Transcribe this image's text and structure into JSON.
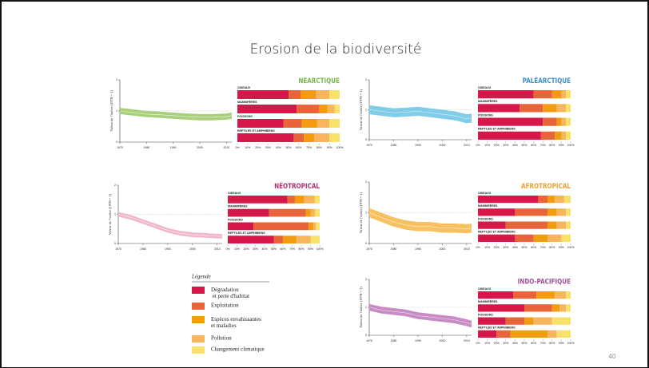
{
  "title": "Erosion de la biodiversité",
  "page_number": "40",
  "legend": {
    "title": "Légende",
    "items": [
      {
        "name": "Dégradation\n et perte d'habitat",
        "color": "#d6174a"
      },
      {
        "name": "Exploitation",
        "color": "#e8643a"
      },
      {
        "name": "Espèces envahissantes\net maladies",
        "color": "#f39c12"
      },
      {
        "name": "Pollution",
        "color": "#f7b55e"
      },
      {
        "name": "Changement climatique",
        "color": "#f8e36a"
      }
    ]
  },
  "chart_data": [
    {
      "type": "band",
      "y_label": "Valeur de l'indice (1970 = 1)",
      "color": "#a8cf7a",
      "x": [
        1970,
        1975,
        1980,
        1985,
        1990,
        1995,
        2000,
        2005,
        2010,
        2012
      ],
      "values": [
        1.0,
        0.95,
        0.9,
        0.88,
        0.85,
        0.82,
        0.8,
        0.8,
        0.82,
        0.85
      ],
      "lower": [
        0.9,
        0.85,
        0.8,
        0.78,
        0.75,
        0.72,
        0.7,
        0.7,
        0.72,
        0.75
      ],
      "upper": [
        1.1,
        1.05,
        1.0,
        0.98,
        0.95,
        0.92,
        0.9,
        0.9,
        0.92,
        0.95
      ],
      "xlim": [
        1970,
        2012
      ],
      "xticks": [
        1970,
        1980,
        1990,
        2000,
        2010
      ],
      "ylim": [
        0,
        2
      ],
      "yticks": [
        0,
        1,
        2
      ]
    },
    {
      "type": "stacked_bar",
      "title": "NÉARCTIQUE",
      "title_color": "#7ab648",
      "categories": [
        "OISEAUX",
        "MAMMIFÈRES",
        "POISSONS",
        "REPTILES ET AMPHIBIENS"
      ],
      "series": [
        {
          "values": [
            50,
            58,
            45,
            55
          ]
        },
        {
          "values": [
            12,
            22,
            18,
            10
          ]
        },
        {
          "values": [
            15,
            8,
            15,
            10
          ]
        },
        {
          "values": [
            13,
            7,
            12,
            15
          ]
        },
        {
          "values": [
            10,
            5,
            10,
            10
          ]
        }
      ],
      "xlim": [
        0,
        100
      ],
      "xticks": [
        {
          "value": 0,
          "label": "0%"
        },
        {
          "value": 10,
          "label": "10%"
        },
        {
          "value": 20,
          "label": "20%"
        },
        {
          "value": 30,
          "label": "30%"
        },
        {
          "value": 40,
          "label": "40%"
        },
        {
          "value": 50,
          "label": "50%"
        },
        {
          "value": 60,
          "label": "60%"
        },
        {
          "value": 70,
          "label": "70%"
        },
        {
          "value": 80,
          "label": "80%"
        },
        {
          "value": 90,
          "label": "90%"
        },
        {
          "value": 100,
          "label": "100%"
        }
      ]
    },
    {
      "type": "band",
      "y_label": "Valeur de l'indice (1970 = 1)",
      "color": "#7fcde6",
      "x": [
        1970,
        1975,
        1980,
        1985,
        1990,
        1995,
        2000,
        2005,
        2010,
        2012
      ],
      "values": [
        1.0,
        0.95,
        0.9,
        0.92,
        0.95,
        0.9,
        0.85,
        0.8,
        0.7,
        0.72
      ],
      "lower": [
        0.85,
        0.8,
        0.75,
        0.77,
        0.8,
        0.75,
        0.7,
        0.65,
        0.55,
        0.57
      ],
      "upper": [
        1.15,
        1.1,
        1.05,
        1.07,
        1.1,
        1.05,
        1.0,
        0.95,
        0.85,
        0.87
      ],
      "xlim": [
        1970,
        2012
      ],
      "xticks": [
        1970,
        1980,
        1990,
        2000,
        2010
      ],
      "ylim": [
        0,
        2
      ],
      "yticks": [
        0,
        1,
        2
      ]
    },
    {
      "type": "stacked_bar",
      "title": "PALÉARCTIQUE",
      "title_color": "#3a8fc6",
      "categories": [
        "OISEAUX",
        "MAMMIFÈRES",
        "POISSONS",
        "REPTILES ET AMPHIBIENS"
      ],
      "series": [
        {
          "values": [
            60,
            45,
            70,
            68
          ]
        },
        {
          "values": [
            20,
            25,
            15,
            15
          ]
        },
        {
          "values": [
            10,
            15,
            5,
            7
          ]
        },
        {
          "values": [
            5,
            10,
            5,
            5
          ]
        },
        {
          "values": [
            5,
            5,
            5,
            5
          ]
        }
      ],
      "xlim": [
        0,
        100
      ],
      "xticks": [
        {
          "value": 0,
          "label": "0%"
        },
        {
          "value": 10,
          "label": "10%"
        },
        {
          "value": 20,
          "label": "20%"
        },
        {
          "value": 30,
          "label": "30%"
        },
        {
          "value": 40,
          "label": "40%"
        },
        {
          "value": 50,
          "label": "50%"
        },
        {
          "value": 60,
          "label": "60%"
        },
        {
          "value": 70,
          "label": "70%"
        },
        {
          "value": 80,
          "label": "80%"
        },
        {
          "value": 90,
          "label": "90%"
        },
        {
          "value": 100,
          "label": "100%"
        }
      ]
    },
    {
      "type": "band",
      "y_label": "Valeur de l'indice (1970 = 1)",
      "color": "#f2b6cc",
      "x": [
        1970,
        1975,
        1980,
        1985,
        1990,
        1995,
        2000,
        2005,
        2010,
        2012
      ],
      "values": [
        1.0,
        0.9,
        0.75,
        0.6,
        0.45,
        0.35,
        0.3,
        0.28,
        0.25,
        0.25
      ],
      "lower": [
        0.92,
        0.82,
        0.67,
        0.52,
        0.37,
        0.27,
        0.22,
        0.2,
        0.17,
        0.17
      ],
      "upper": [
        1.08,
        0.98,
        0.83,
        0.68,
        0.53,
        0.43,
        0.38,
        0.36,
        0.33,
        0.33
      ],
      "xlim": [
        1970,
        2012
      ],
      "xticks": [
        1970,
        1980,
        1990,
        2000,
        2010
      ],
      "ylim": [
        0,
        2
      ],
      "yticks": [
        0,
        1,
        2
      ]
    },
    {
      "type": "stacked_bar",
      "title": "NÉOTROPICAL",
      "title_color": "#b0306f",
      "categories": [
        "OISEAUX",
        "MAMMIFÈRES",
        "POISSONS",
        "REPTILES ET AMPHIBIENS"
      ],
      "series": [
        {
          "values": [
            65,
            45,
            28,
            50
          ]
        },
        {
          "values": [
            8,
            40,
            60,
            10
          ]
        },
        {
          "values": [
            10,
            5,
            5,
            15
          ]
        },
        {
          "values": [
            12,
            5,
            3,
            15
          ]
        },
        {
          "values": [
            5,
            5,
            4,
            10
          ]
        }
      ],
      "xlim": [
        0,
        100
      ],
      "xticks": [
        {
          "value": 0,
          "label": "0%"
        },
        {
          "value": 10,
          "label": "10%"
        },
        {
          "value": 20,
          "label": "20%"
        },
        {
          "value": 30,
          "label": "30%"
        },
        {
          "value": 40,
          "label": "40%"
        },
        {
          "value": 50,
          "label": "50%"
        },
        {
          "value": 60,
          "label": "60%"
        },
        {
          "value": 70,
          "label": "70%"
        },
        {
          "value": 80,
          "label": "80%"
        },
        {
          "value": 90,
          "label": "90%"
        },
        {
          "value": 100,
          "label": "100%"
        }
      ]
    },
    {
      "type": "band",
      "y_label": "Valeur de l'indice (1970 = 1)",
      "color": "#f7c15f",
      "x": [
        1970,
        1975,
        1980,
        1985,
        1990,
        1995,
        2000,
        2005,
        2010,
        2012
      ],
      "values": [
        1.0,
        0.85,
        0.7,
        0.6,
        0.55,
        0.55,
        0.5,
        0.5,
        0.48,
        0.5
      ],
      "lower": [
        0.85,
        0.7,
        0.55,
        0.45,
        0.4,
        0.4,
        0.35,
        0.35,
        0.33,
        0.35
      ],
      "upper": [
        1.15,
        1.0,
        0.85,
        0.75,
        0.7,
        0.7,
        0.65,
        0.65,
        0.63,
        0.65
      ],
      "xlim": [
        1970,
        2012
      ],
      "xticks": [
        1970,
        1980,
        1990,
        2000,
        2010
      ],
      "ylim": [
        0,
        2
      ],
      "yticks": [
        0,
        1,
        2
      ]
    },
    {
      "type": "stacked_bar",
      "title": "AFROTROPICAL",
      "title_color": "#f0a030",
      "categories": [
        "OISEAUX",
        "MAMMIFÈRES",
        "POISSONS",
        "REPTILES ET AMPHIBIENS"
      ],
      "series": [
        {
          "values": [
            65,
            40,
            30,
            40
          ]
        },
        {
          "values": [
            10,
            35,
            45,
            20
          ]
        },
        {
          "values": [
            8,
            10,
            10,
            15
          ]
        },
        {
          "values": [
            10,
            10,
            10,
            15
          ]
        },
        {
          "values": [
            7,
            5,
            5,
            10
          ]
        }
      ],
      "xlim": [
        0,
        100
      ],
      "xticks": [
        {
          "value": 0,
          "label": "0%"
        },
        {
          "value": 10,
          "label": "10%"
        },
        {
          "value": 20,
          "label": "20%"
        },
        {
          "value": 30,
          "label": "30%"
        },
        {
          "value": 40,
          "label": "40%"
        },
        {
          "value": 50,
          "label": "50%"
        },
        {
          "value": 60,
          "label": "60%"
        },
        {
          "value": 70,
          "label": "70%"
        },
        {
          "value": 80,
          "label": "80%"
        },
        {
          "value": 90,
          "label": "90%"
        },
        {
          "value": 100,
          "label": "100%"
        }
      ]
    },
    {
      "type": "band",
      "y_label": "Valeur de l'indice (1970 = 1)",
      "color": "#c98bc6",
      "x": [
        1970,
        1975,
        1980,
        1985,
        1990,
        1995,
        2000,
        2005,
        2010,
        2012
      ],
      "values": [
        1.0,
        0.9,
        0.85,
        0.8,
        0.7,
        0.65,
        0.6,
        0.55,
        0.45,
        0.4
      ],
      "lower": [
        0.88,
        0.78,
        0.73,
        0.68,
        0.58,
        0.53,
        0.48,
        0.43,
        0.33,
        0.28
      ],
      "upper": [
        1.12,
        1.02,
        0.97,
        0.92,
        0.82,
        0.77,
        0.72,
        0.67,
        0.57,
        0.52
      ],
      "xlim": [
        1970,
        2012
      ],
      "xticks": [
        1970,
        1980,
        1990,
        2000,
        2010
      ],
      "ylim": [
        0,
        2
      ],
      "yticks": [
        0,
        1,
        2
      ]
    },
    {
      "type": "stacked_bar",
      "title": "INDO-PACIFIQUE",
      "title_color": "#a04f9a",
      "categories": [
        "OISEAUX",
        "MAMMIFÈRES",
        "POISSONS",
        "REPTILES ET AMPHIBIENS"
      ],
      "series": [
        {
          "values": [
            38,
            50,
            30,
            20
          ]
        },
        {
          "values": [
            25,
            30,
            20,
            15
          ]
        },
        {
          "values": [
            20,
            8,
            10,
            40
          ]
        },
        {
          "values": [
            12,
            7,
            20,
            10
          ]
        },
        {
          "values": [
            5,
            5,
            20,
            15
          ]
        }
      ],
      "xlim": [
        0,
        100
      ],
      "xticks": [
        {
          "value": 0,
          "label": "0%"
        },
        {
          "value": 10,
          "label": "10%"
        },
        {
          "value": 20,
          "label": "20%"
        },
        {
          "value": 30,
          "label": "30%"
        },
        {
          "value": 40,
          "label": "40%"
        },
        {
          "value": 50,
          "label": "50%"
        },
        {
          "value": 60,
          "label": "60%"
        },
        {
          "value": 70,
          "label": "70%"
        },
        {
          "value": 80,
          "label": "80%"
        },
        {
          "value": 90,
          "label": "90%"
        },
        {
          "value": 100,
          "label": "100%"
        }
      ]
    }
  ]
}
